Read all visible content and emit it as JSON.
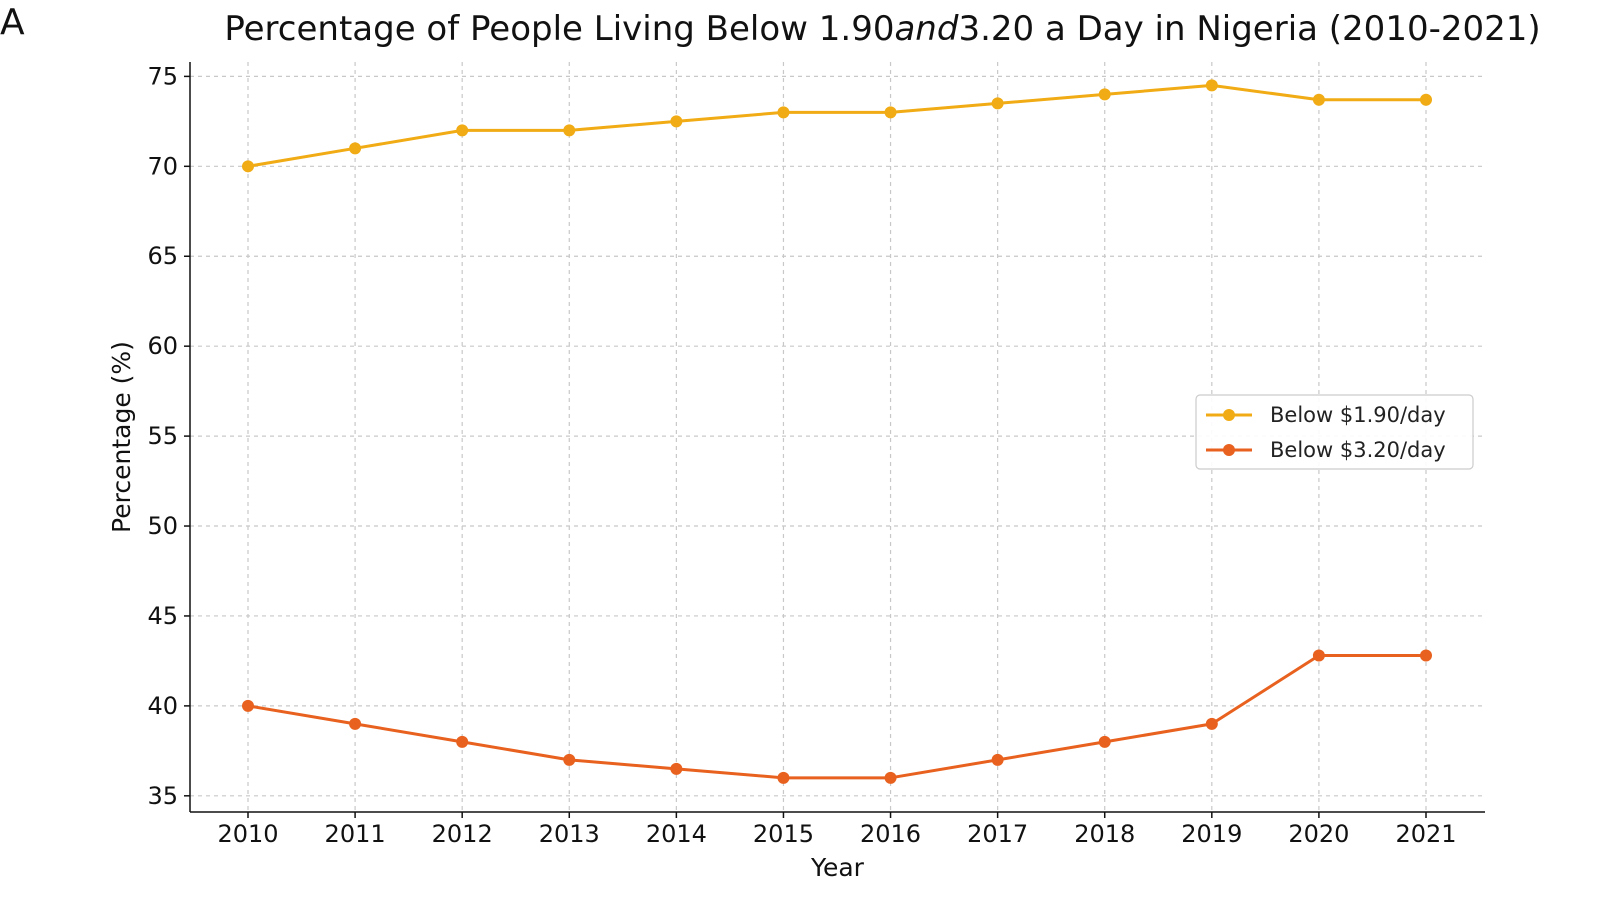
{
  "panel_label": "A",
  "colors": {
    "series_1": "#f1ab14",
    "series_2": "#e8611e",
    "axis": "#111111",
    "grid": "#c8c8c8"
  },
  "chart_data": {
    "type": "line",
    "title_parts": [
      {
        "text": "Percentage of People Living Below 1.90",
        "style": "normal"
      },
      {
        "text": "and",
        "style": "italic"
      },
      {
        "text": "3.20 a Day in Nigeria (2010-2021)",
        "style": "normal"
      }
    ],
    "xlabel": "Year",
    "ylabel": "Percentage (%)",
    "categories": [
      "2010",
      "2011",
      "2012",
      "2013",
      "2014",
      "2015",
      "2016",
      "2017",
      "2018",
      "2019",
      "2020",
      "2021"
    ],
    "yticks": [
      35,
      40,
      45,
      50,
      55,
      60,
      65,
      70,
      75
    ],
    "ylim": [
      34.1,
      75.8
    ],
    "grid": true,
    "legend_position": "center-right",
    "series": [
      {
        "name": "Below $1.90/day",
        "color": "#f1ab14",
        "values": [
          70,
          71,
          72,
          72,
          72.5,
          73,
          73,
          73.5,
          74,
          74.5,
          73.7,
          73.7
        ]
      },
      {
        "name": "Below $3.20/day",
        "color": "#e8611e",
        "values": [
          40,
          39,
          38,
          37,
          36.5,
          36,
          36,
          37,
          38,
          39,
          42.8,
          42.8
        ]
      }
    ]
  }
}
